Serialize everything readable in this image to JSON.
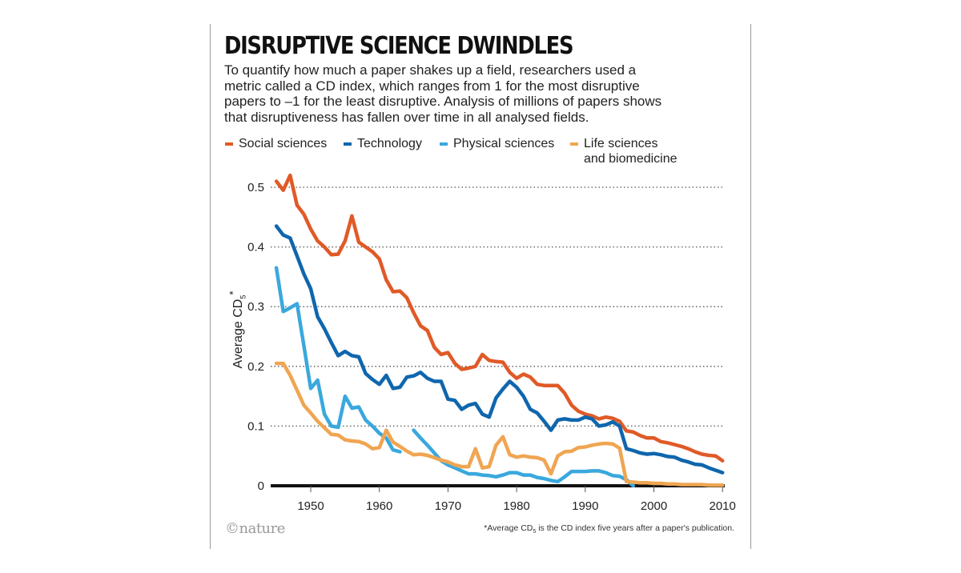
{
  "title": "DISRUPTIVE SCIENCE DWINDLES",
  "subtitle": "To quantify how much a paper shakes up a field, researchers used a metric called a CD index, which ranges from 1 for the most disruptive papers to –1 for the least disruptive. Analysis of millions of papers shows that disruptiveness has fallen over time in all analysed fields.",
  "logo": "©nature",
  "footnote": {
    "prefix": "*Average CD",
    "sub": "5",
    "suffix": " is the CD index five years after a paper's publication."
  },
  "chart_data": {
    "type": "line",
    "title": "DISRUPTIVE SCIENCE DWINDLES",
    "xlabel": "",
    "ylabel": {
      "text": "Average CD",
      "sub": "5",
      "sup": "*"
    },
    "xlim": [
      1945,
      2010
    ],
    "ylim": [
      0,
      0.5
    ],
    "xticks": [
      1950,
      1960,
      1970,
      1980,
      1990,
      2000,
      2010
    ],
    "yticks": [
      0,
      0.1,
      0.2,
      0.3,
      0.4,
      0.5
    ],
    "ytick_labels": [
      "0",
      "0.1",
      "0.2",
      "0.3",
      "0.4",
      "0.5"
    ],
    "grid": "horizontal dotted",
    "legend_position": "top",
    "series": [
      {
        "name": "Social sciences",
        "color": "#e05a27",
        "start": 1945,
        "values": [
          0.51,
          0.495,
          0.52,
          0.47,
          0.455,
          0.43,
          0.41,
          0.4,
          0.387,
          0.388,
          0.41,
          0.452,
          0.408,
          0.4,
          0.392,
          0.38,
          0.345,
          0.325,
          0.326,
          0.315,
          0.29,
          0.268,
          0.26,
          0.232,
          0.22,
          0.223,
          0.205,
          0.195,
          0.197,
          0.2,
          0.22,
          0.21,
          0.208,
          0.207,
          0.19,
          0.18,
          0.187,
          0.182,
          0.17,
          0.168,
          0.168,
          0.168,
          0.155,
          0.135,
          0.125,
          0.12,
          0.117,
          0.112,
          0.115,
          0.113,
          0.108,
          0.092,
          0.09,
          0.084,
          0.08,
          0.08,
          0.074,
          0.072,
          0.069,
          0.066,
          0.062,
          0.057,
          0.053,
          0.051,
          0.05,
          0.042
        ]
      },
      {
        "name": "Technology",
        "color": "#0f66ad",
        "start": 1945,
        "values": [
          0.435,
          0.42,
          0.415,
          0.385,
          0.355,
          0.33,
          0.283,
          0.263,
          0.24,
          0.218,
          0.225,
          0.218,
          0.216,
          0.188,
          0.178,
          0.17,
          0.185,
          0.163,
          0.165,
          0.182,
          0.184,
          0.19,
          0.18,
          0.175,
          0.175,
          0.145,
          0.143,
          0.128,
          0.135,
          0.138,
          0.12,
          0.115,
          0.147,
          0.162,
          0.175,
          0.165,
          0.15,
          0.128,
          0.122,
          0.108,
          0.093,
          0.11,
          0.112,
          0.11,
          0.11,
          0.115,
          0.112,
          0.1,
          0.102,
          0.107,
          0.1,
          0.062,
          0.059,
          0.055,
          0.053,
          0.054,
          0.052,
          0.049,
          0.048,
          0.043,
          0.04,
          0.036,
          0.035,
          0.03,
          0.026,
          0.022
        ]
      },
      {
        "name": "Physical sciences",
        "color": "#3aa8dd",
        "start": 1945,
        "values": [
          0.365,
          0.292,
          0.298,
          0.305,
          0.235,
          0.163,
          0.177,
          0.12,
          0.1,
          0.098,
          0.15,
          0.13,
          0.132,
          0.11,
          0.1,
          0.088,
          0.08,
          0.06,
          0.057,
          null,
          0.093,
          0.08,
          0.068,
          0.055,
          0.042,
          0.035,
          0.03,
          0.025,
          0.02,
          0.02,
          0.018,
          0.017,
          0.015,
          0.018,
          0.022,
          0.022,
          0.018,
          0.018,
          0.014,
          0.012,
          0.009,
          0.007,
          0.015,
          0.024,
          0.024,
          0.024,
          0.025,
          0.025,
          0.022,
          0.017,
          0.016,
          0.01,
          0.0
        ]
      },
      {
        "name": "Life sciences and biomedicine",
        "name_lines": [
          "Life sciences",
          "and biomedicine"
        ],
        "color": "#f0a552",
        "start": 1945,
        "values": [
          0.205,
          0.205,
          0.185,
          0.16,
          0.135,
          0.122,
          0.108,
          0.097,
          0.086,
          0.085,
          0.077,
          0.075,
          0.074,
          0.07,
          0.062,
          0.064,
          0.093,
          0.073,
          0.066,
          0.058,
          0.052,
          0.053,
          0.051,
          0.047,
          0.043,
          0.04,
          0.035,
          0.032,
          0.032,
          0.062,
          0.03,
          0.032,
          0.068,
          0.082,
          0.052,
          0.048,
          0.05,
          0.048,
          0.047,
          0.043,
          0.02,
          0.05,
          0.057,
          0.058,
          0.064,
          0.065,
          0.068,
          0.07,
          0.071,
          0.07,
          0.063,
          0.007,
          0.006,
          0.005,
          0.005,
          0.004,
          0.004,
          0.003,
          0.003,
          0.002,
          0.002,
          0.002,
          0.002,
          0.001,
          0.001,
          0.001
        ]
      }
    ]
  }
}
